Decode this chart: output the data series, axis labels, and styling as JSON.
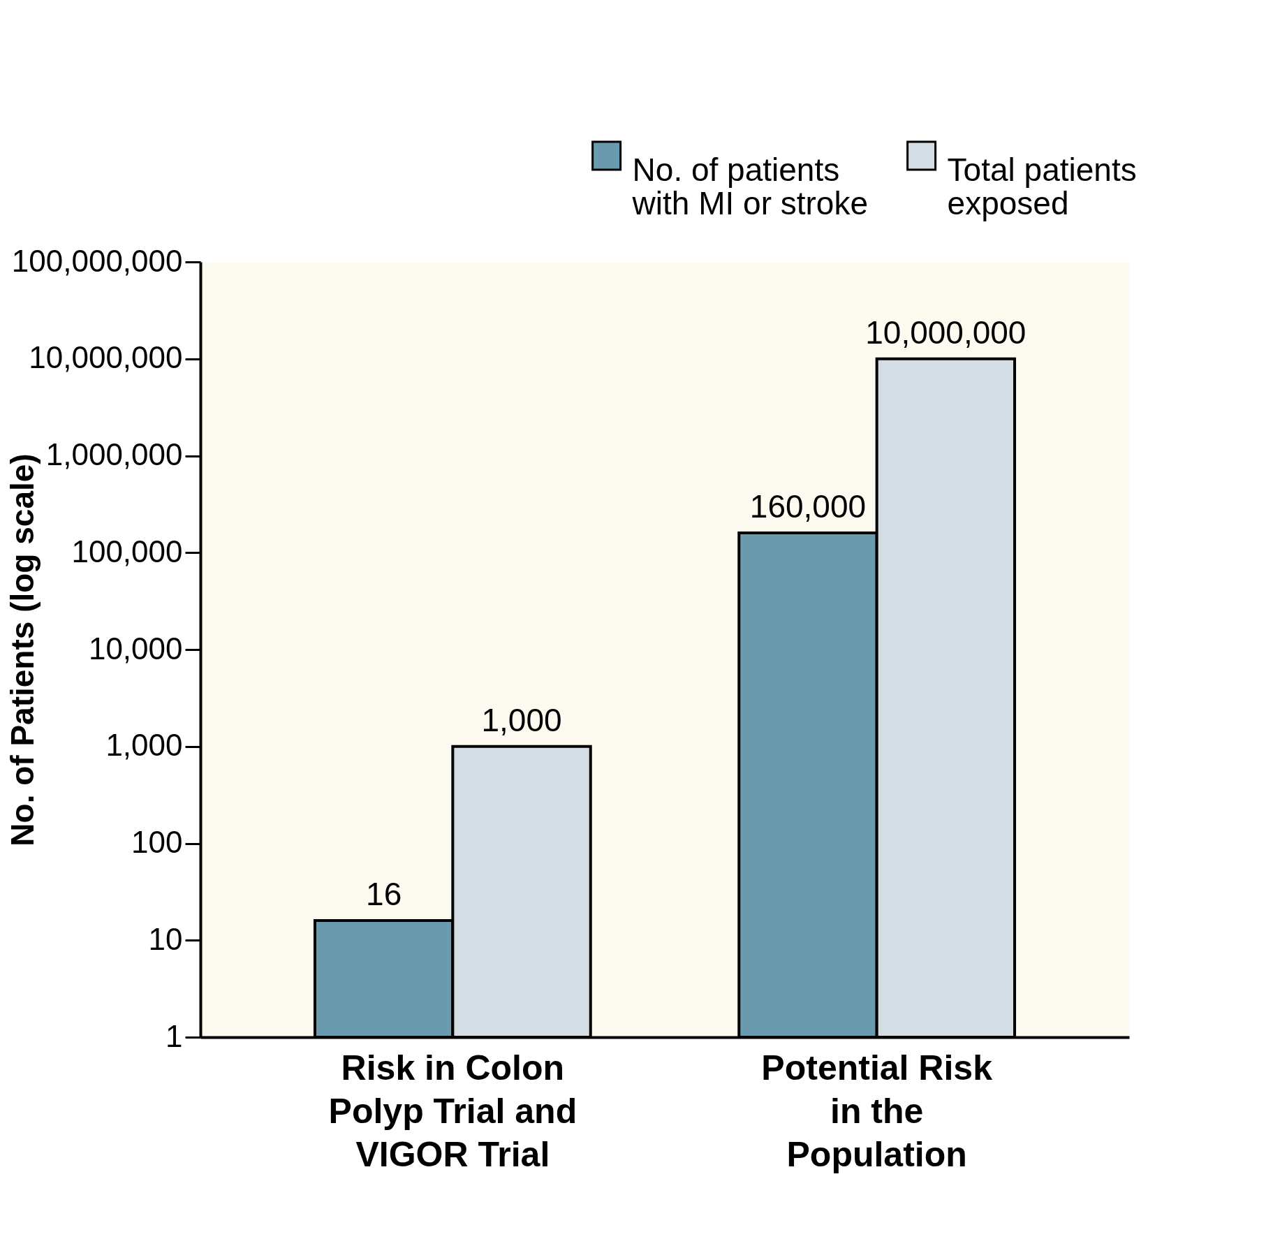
{
  "chart_data": {
    "type": "bar",
    "ylabel": "No. of Patients (log scale)",
    "categories": [
      "Risk in Colon Polyp Trial and VIGOR Trial",
      "Potential Risk in the Population"
    ],
    "series": [
      {
        "name": "No. of patients with MI or stroke",
        "color": "#6a9aae",
        "values": [
          16,
          160000
        ],
        "value_labels": [
          "16",
          "160,000"
        ]
      },
      {
        "name": "Total patients exposed",
        "color": "#d3dde3",
        "values": [
          1000,
          10000000
        ],
        "value_labels": [
          "1,000",
          "10,000,000"
        ]
      }
    ],
    "log": true,
    "ylim": [
      1,
      100000000
    ],
    "yticks": [
      1,
      10,
      100,
      {
        "value": 1000,
        "label": "1,000"
      },
      {
        "value": 10000,
        "label": "10,000"
      },
      {
        "value": 100000,
        "label": "100,000"
      },
      {
        "value": 1000000,
        "label": "1,000,000"
      },
      {
        "value": 10000000,
        "label": "10,000,000"
      },
      {
        "value": 100000000,
        "label": "100,000,000"
      }
    ],
    "grid": false,
    "legend": "top right"
  }
}
